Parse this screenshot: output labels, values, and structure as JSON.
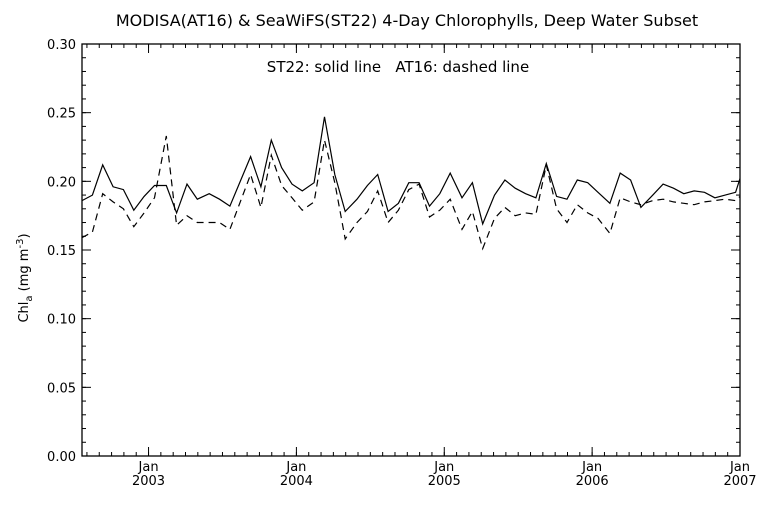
{
  "chart_data": {
    "type": "line",
    "title": "MODISA(AT16) & SeaWiFS(ST22) 4-Day Chlorophylls, Deep Water Subset",
    "annotation": "ST22: solid line   AT16: dashed line",
    "ylabel_base": "Chl",
    "ylabel_sub": "a",
    "ylabel_units": " (mg m",
    "ylabel_sup": "-3",
    "ylabel_close": ")",
    "ylim": [
      0.0,
      0.3
    ],
    "xlim": [
      2002.55,
      2007.0
    ],
    "y_ticks": [
      {
        "value": 0.0,
        "label": "0.00"
      },
      {
        "value": 0.05,
        "label": "0.05"
      },
      {
        "value": 0.1,
        "label": "0.10"
      },
      {
        "value": 0.15,
        "label": "0.15"
      },
      {
        "value": 0.2,
        "label": "0.20"
      },
      {
        "value": 0.25,
        "label": "0.25"
      },
      {
        "value": 0.3,
        "label": "0.30"
      }
    ],
    "x_ticks": [
      {
        "value": 2003.0,
        "month": "Jan",
        "year": "2003"
      },
      {
        "value": 2004.0,
        "month": "Jan",
        "year": "2004"
      },
      {
        "value": 2005.0,
        "month": "Jan",
        "year": "2005"
      },
      {
        "value": 2006.0,
        "month": "Jan",
        "year": "2006"
      },
      {
        "value": 2007.0,
        "month": "Jan",
        "year": "2007"
      }
    ],
    "series": [
      {
        "name": "ST22",
        "style": "solid",
        "color": "#000000",
        "x": [
          2002.55,
          2002.62,
          2002.69,
          2002.76,
          2002.83,
          2002.9,
          2002.97,
          2003.04,
          2003.12,
          2003.19,
          2003.26,
          2003.33,
          2003.41,
          2003.48,
          2003.55,
          2003.69,
          2003.76,
          2003.83,
          2003.9,
          2003.97,
          2004.04,
          2004.12,
          2004.19,
          2004.26,
          2004.33,
          2004.41,
          2004.48,
          2004.55,
          2004.62,
          2004.69,
          2004.76,
          2004.83,
          2004.9,
          2004.97,
          2005.04,
          2005.12,
          2005.19,
          2005.26,
          2005.34,
          2005.41,
          2005.48,
          2005.55,
          2005.62,
          2005.69,
          2005.76,
          2005.83,
          2005.9,
          2005.97,
          2006.04,
          2006.12,
          2006.19,
          2006.26,
          2006.33,
          2006.41,
          2006.48,
          2006.55,
          2006.62,
          2006.69,
          2006.76,
          2006.83,
          2006.9,
          2006.97,
          2007.0
        ],
        "y": [
          0.186,
          0.19,
          0.212,
          0.196,
          0.194,
          0.179,
          0.189,
          0.197,
          0.197,
          0.177,
          0.198,
          0.187,
          0.191,
          0.187,
          0.182,
          0.218,
          0.196,
          0.23,
          0.21,
          0.198,
          0.193,
          0.199,
          0.247,
          0.205,
          0.178,
          0.187,
          0.197,
          0.205,
          0.178,
          0.184,
          0.199,
          0.199,
          0.182,
          0.191,
          0.206,
          0.188,
          0.199,
          0.169,
          0.19,
          0.201,
          0.195,
          0.191,
          0.188,
          0.213,
          0.189,
          0.187,
          0.201,
          0.199,
          0.192,
          0.184,
          0.206,
          0.201,
          0.181,
          0.19,
          0.198,
          0.195,
          0.191,
          0.193,
          0.192,
          0.188,
          0.19,
          0.192,
          0.202
        ]
      },
      {
        "name": "AT16",
        "style": "dashed",
        "color": "#000000",
        "x": [
          2002.55,
          2002.62,
          2002.69,
          2002.76,
          2002.83,
          2002.9,
          2002.97,
          2003.04,
          2003.12,
          2003.19,
          2003.26,
          2003.33,
          2003.41,
          2003.48,
          2003.55,
          2003.69,
          2003.76,
          2003.83,
          2003.9,
          2003.97,
          2004.04,
          2004.12,
          2004.19,
          2004.26,
          2004.33,
          2004.41,
          2004.48,
          2004.55,
          2004.62,
          2004.69,
          2004.76,
          2004.83,
          2004.9,
          2004.97,
          2005.04,
          2005.12,
          2005.19,
          2005.26,
          2005.34,
          2005.41,
          2005.48,
          2005.55,
          2005.62,
          2005.69,
          2005.76,
          2005.83,
          2005.9,
          2005.97,
          2006.04,
          2006.12,
          2006.19,
          2006.26,
          2006.33,
          2006.41,
          2006.48,
          2006.55,
          2006.62,
          2006.69,
          2006.76,
          2006.83,
          2006.9,
          2006.97,
          2007.0
        ],
        "y": [
          0.159,
          0.163,
          0.191,
          0.185,
          0.18,
          0.167,
          0.177,
          0.188,
          0.233,
          0.168,
          0.175,
          0.17,
          0.17,
          0.17,
          0.165,
          0.205,
          0.181,
          0.219,
          0.197,
          0.188,
          0.179,
          0.185,
          0.23,
          0.199,
          0.158,
          0.17,
          0.178,
          0.193,
          0.17,
          0.179,
          0.194,
          0.198,
          0.174,
          0.179,
          0.187,
          0.165,
          0.178,
          0.151,
          0.173,
          0.181,
          0.175,
          0.177,
          0.176,
          0.212,
          0.18,
          0.17,
          0.183,
          0.177,
          0.173,
          0.162,
          0.188,
          0.185,
          0.183,
          0.186,
          0.187,
          0.185,
          0.184,
          0.183,
          0.185,
          0.186,
          0.187,
          0.186,
          0.189
        ]
      }
    ]
  }
}
